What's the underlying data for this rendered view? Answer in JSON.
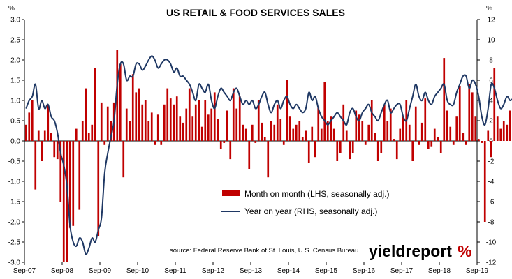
{
  "chart_data": {
    "type": "bar",
    "title": "US RETAIL & FOOD SERVICES SALES",
    "left_unit": "%",
    "right_unit": "%",
    "y_left_lim": [
      -3.0,
      3.0
    ],
    "y_right_lim": [
      -12,
      12
    ],
    "y_left_ticks": [
      "3.0",
      "2.5",
      "2.0",
      "1.5",
      "1.0",
      "0.5",
      "0.0",
      "-0.5",
      "-1.0",
      "-1.5",
      "-2.0",
      "-2.5",
      "-3.0"
    ],
    "y_right_ticks": [
      "12",
      "10",
      "8",
      "6",
      "4",
      "2",
      "0",
      "-2",
      "-4",
      "-6",
      "-8",
      "-10",
      "-12"
    ],
    "x_ticks": [
      "Sep-07",
      "Sep-08",
      "Sep-09",
      "Sep-10",
      "Sep-11",
      "Sep-12",
      "Sep-13",
      "Sep-14",
      "Sep-15",
      "Sep-16",
      "Sep-17",
      "Sep-18",
      "Sep-19"
    ],
    "x_start": "Sep-07",
    "grid": false,
    "legend_position": "bottom-right",
    "colors": {
      "bars": "#C00000",
      "line": "#1F3864"
    },
    "series": [
      {
        "name": "Month on month (LHS, seasonally adj.)",
        "type": "bar",
        "axis": "left",
        "values": [
          0.4,
          0.7,
          1.0,
          -1.2,
          0.25,
          -0.5,
          0.25,
          0.9,
          0.2,
          -0.4,
          -0.45,
          -1.5,
          -3.0,
          -3.0,
          -2.15,
          -2.1,
          0.3,
          -1.7,
          0.5,
          1.3,
          0.2,
          0.4,
          1.8,
          -2.35,
          0.95,
          -0.1,
          0.85,
          0.5,
          0.95,
          2.25,
          1.9,
          -0.9,
          0.8,
          0.5,
          1.65,
          1.2,
          1.3,
          0.9,
          1.0,
          0.5,
          0.7,
          -0.1,
          0.65,
          -0.1,
          0.9,
          1.3,
          1.05,
          0.9,
          1.1,
          0.6,
          0.45,
          0.8,
          1.3,
          0.6,
          0.9,
          1.0,
          0.35,
          1.0,
          0.65,
          0.8,
          1.2,
          0.55,
          -0.2,
          -0.05,
          0.75,
          -0.45,
          1.3,
          0.8,
          1.1,
          0.4,
          0.3,
          -0.7,
          0.4,
          -0.05,
          1.0,
          0.45,
          0.1,
          -0.9,
          0.5,
          0.4,
          0.9,
          0.55,
          -0.1,
          1.5,
          0.6,
          0.3,
          0.4,
          0.5,
          0.1,
          0.25,
          -0.55,
          0.35,
          -0.4,
          0.85,
          0.3,
          1.45,
          0.5,
          0.6,
          0.3,
          -0.5,
          -0.3,
          0.9,
          0.25,
          -0.45,
          -0.3,
          0.75,
          0.65,
          0.5,
          -0.1,
          0.4,
          1.0,
          0.2,
          -0.5,
          -0.3,
          0.9,
          0.5,
          0.8,
          0.05,
          -0.45,
          0.3,
          0.6,
          1.0,
          0.4,
          -0.5,
          0.85,
          -0.1,
          0.45,
          1.05,
          -0.2,
          -0.15,
          0.3,
          0.1,
          -0.3,
          2.05,
          0.75,
          0.35,
          -0.1,
          0.6,
          1.35,
          0.2,
          -0.1,
          1.4,
          1.2,
          0.6,
          0.05,
          -0.05,
          -2.0,
          0.25,
          -0.4,
          1.8,
          0.6,
          0.3,
          0.5,
          0.4,
          0.75,
          0.6,
          -0.25
        ]
      },
      {
        "name": "Year on year (RHS, seasonally adj.)",
        "type": "line",
        "axis": "right",
        "values": [
          3.2,
          4.0,
          4.4,
          5.6,
          3.2,
          4.0,
          3.2,
          3.6,
          2.4,
          2.0,
          0.8,
          -1.2,
          -2.4,
          -4.4,
          -8.4,
          -10.0,
          -10.4,
          -9.6,
          -10.0,
          -11.2,
          -10.6,
          -9.6,
          -10.0,
          -8.8,
          -7.6,
          -3.2,
          -1.2,
          0.4,
          2.0,
          5.6,
          7.6,
          7.6,
          6.0,
          6.4,
          6.4,
          7.6,
          7.6,
          7.0,
          7.4,
          8.0,
          8.4,
          8.0,
          7.2,
          7.6,
          8.0,
          8.0,
          7.6,
          6.8,
          7.2,
          6.4,
          6.4,
          6.0,
          5.6,
          4.8,
          4.0,
          5.6,
          5.2,
          4.8,
          5.6,
          4.0,
          3.2,
          4.4,
          5.2,
          4.8,
          4.4,
          4.0,
          4.8,
          5.2,
          4.4,
          3.6,
          4.0,
          3.6,
          4.0,
          3.2,
          3.6,
          4.4,
          4.8,
          3.6,
          2.8,
          3.6,
          4.0,
          3.2,
          4.0,
          4.4,
          3.6,
          3.2,
          3.6,
          3.2,
          2.8,
          3.2,
          4.8,
          4.0,
          4.4,
          3.2,
          2.4,
          2.0,
          1.6,
          2.0,
          2.4,
          2.8,
          2.4,
          2.0,
          1.6,
          2.8,
          3.2,
          2.4,
          2.0,
          2.8,
          3.2,
          3.6,
          2.8,
          2.4,
          2.0,
          2.8,
          3.6,
          4.0,
          2.8,
          3.2,
          3.6,
          3.6,
          2.4,
          2.0,
          3.2,
          4.4,
          5.6,
          4.4,
          4.0,
          4.8,
          4.0,
          3.6,
          4.4,
          4.8,
          5.2,
          5.6,
          4.0,
          3.6,
          3.6,
          4.8,
          5.6,
          6.4,
          6.4,
          5.2,
          6.0,
          5.6,
          4.4,
          2.4,
          1.6,
          3.2,
          5.6,
          5.2,
          4.0,
          3.2,
          3.6,
          4.4,
          4.0,
          4.2,
          4.2,
          4.0,
          4.2
        ]
      }
    ]
  },
  "source_note": "source: Federal Reserve Bank of St. Louis, U.S. Census Bureau",
  "brand": {
    "name": "yieldreport",
    "symbol": "%",
    "symbol_color": "#C00000"
  }
}
